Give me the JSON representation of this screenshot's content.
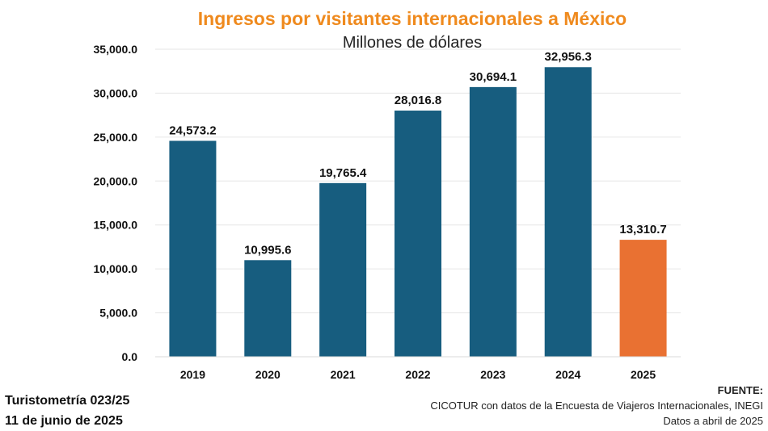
{
  "chart_data": {
    "type": "bar",
    "title": "Ingresos por visitantes internacionales a México",
    "subtitle": "Millones de dólares",
    "categories": [
      "2019",
      "2020",
      "2021",
      "2022",
      "2023",
      "2024",
      "2025"
    ],
    "values": [
      24573.2,
      10995.6,
      19765.4,
      28016.8,
      30694.1,
      32956.3,
      13310.7
    ],
    "value_labels": [
      "24,573.2",
      "10,995.6",
      "19,765.4",
      "28,016.8",
      "30,694.1",
      "32,956.3",
      "13,310.7"
    ],
    "ylim": [
      0,
      35000
    ],
    "yticks": [
      0,
      5000,
      10000,
      15000,
      20000,
      25000,
      30000,
      35000
    ],
    "ytick_labels": [
      "0.0",
      "5,000.0",
      "10,000.0",
      "15,000.0",
      "20,000.0",
      "25,000.0",
      "30,000.0",
      "35,000.0"
    ],
    "xlabel": "",
    "ylabel": "",
    "grid": true,
    "colors": {
      "bar": "#175D7F",
      "highlight": "#E97132",
      "highlight_index": 6,
      "title": "#EF8A1E",
      "gridline": "#E6E6E6"
    }
  },
  "footer": {
    "report": "Turistometría 023/25",
    "date": "11 de junio de 2025",
    "source_title": "FUENTE:",
    "source_text": "CICOTUR con datos de la Encuesta de Viajeros Internacionales, INEGI",
    "data_note": "Datos a abril de 2025"
  }
}
